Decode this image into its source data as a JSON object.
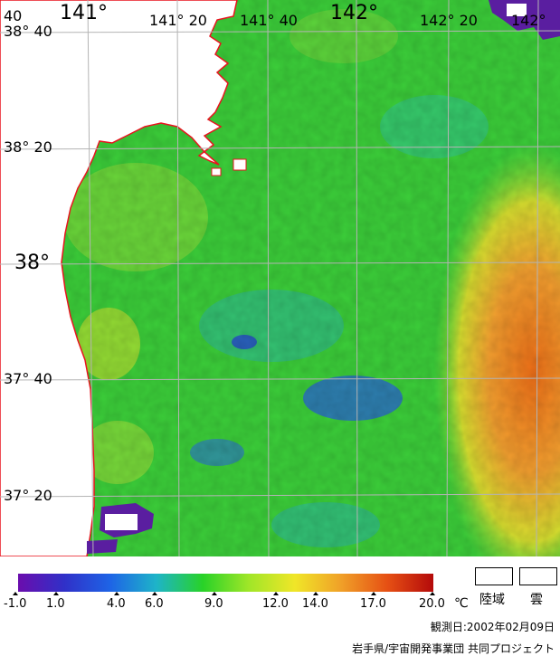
{
  "map": {
    "lon_labels": [
      {
        "text": "40",
        "kind": "minor"
      },
      {
        "text": "141°",
        "kind": "major"
      },
      {
        "text": "141° 20",
        "kind": "minor"
      },
      {
        "text": "141° 40",
        "kind": "minor"
      },
      {
        "text": "142°",
        "kind": "major"
      },
      {
        "text": "142° 20",
        "kind": "minor"
      },
      {
        "text": "142°",
        "kind": "minor"
      }
    ],
    "lat_labels": [
      {
        "text": "38° 40",
        "kind": "minor"
      },
      {
        "text": "38° 20",
        "kind": "minor"
      },
      {
        "text": "38°",
        "kind": "major"
      },
      {
        "text": "37° 40",
        "kind": "minor"
      },
      {
        "text": "37° 20",
        "kind": "minor"
      }
    ],
    "colors": {
      "land": "#ffffff",
      "coastline": "#e8141e",
      "grid": "#b4b4b4",
      "sea_main": "#3cd23a",
      "sea_warm": "#f07820",
      "sea_cool": "#2850d8",
      "cloud": "#6420a0"
    }
  },
  "scale": {
    "ticks": [
      "-1.0",
      "1.0",
      "4.0",
      "6.0",
      "9.0",
      "12.0",
      "14.0",
      "17.0",
      "20.0"
    ],
    "unit": "℃",
    "gradient": [
      "#6a0dad",
      "#3030c8",
      "#1e64e6",
      "#1eb4c8",
      "#28d228",
      "#a0e628",
      "#f0e628",
      "#f0a028",
      "#e65014",
      "#b40a0a"
    ]
  },
  "legend": {
    "land": "陸域",
    "cloud": "雲"
  },
  "observation": "観測日:2002年02月09日",
  "credit": "岩手県/宇宙開発事業団 共同プロジェクト"
}
